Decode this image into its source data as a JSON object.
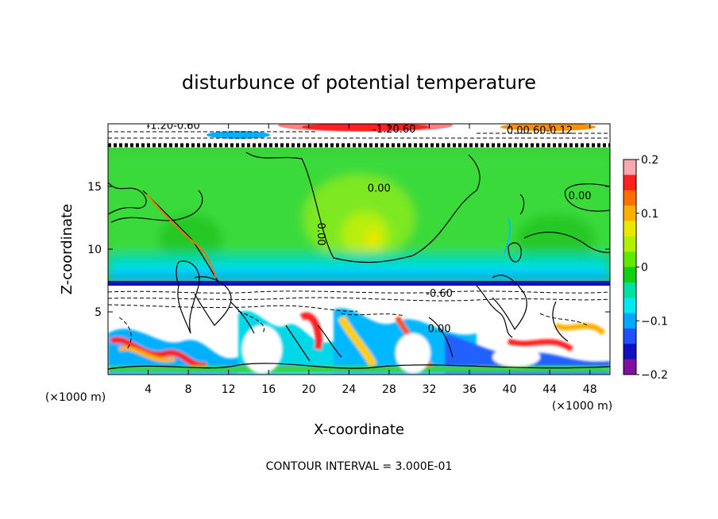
{
  "chart_data": {
    "type": "heatmap",
    "title": "disturbunce of potential temperature",
    "xlabel": "X-coordinate",
    "ylabel": "Z-coordinate",
    "x_unit": "(×1000 m)",
    "y_unit": "(×1000 m)",
    "xlim": [
      0,
      50
    ],
    "ylim": [
      0,
      20
    ],
    "x_ticks": [
      4,
      8,
      12,
      16,
      20,
      24,
      28,
      32,
      36,
      40,
      44,
      48
    ],
    "y_ticks": [
      5,
      10,
      15
    ],
    "colorbar": {
      "range": [
        -0.2,
        0.2
      ],
      "tick_values": [
        0.2,
        0.1,
        0,
        -0.1,
        -0.2
      ],
      "tick_labels": [
        "0.2",
        "0.1",
        "0",
        "−0.1",
        "−0.2"
      ],
      "colors": [
        "#f8a8b0",
        "#ff2020",
        "#ff7000",
        "#ffb000",
        "#e8e800",
        "#b0f000",
        "#60e800",
        "#10d010",
        "#00e0a0",
        "#00e8f0",
        "#00a8ff",
        "#2050ff",
        "#1010c0",
        "#8010a0"
      ]
    },
    "contour_labels": [
      {
        "text": "0.00",
        "x": 27.0,
        "y": 14.6
      },
      {
        "text": "0.00",
        "x": 47.0,
        "y": 14.0
      },
      {
        "text": "0.00",
        "x": 20.9,
        "y": 11.2,
        "rotate": 90
      },
      {
        "text": "0.00",
        "x": 33.0,
        "y": 3.4
      },
      {
        "text": "-0.60",
        "x": 33.0,
        "y": 6.2
      },
      {
        "text": "-1.20-0.60",
        "x": 6.5,
        "y": 19.6
      },
      {
        "text": "-1.20.60",
        "x": 28.5,
        "y": 19.3
      },
      {
        "text": "0.00.60-0.12",
        "x": 43.0,
        "y": 19.2
      }
    ],
    "contour_interval_text": "CONTOUR INTERVAL = 3.000E-01"
  }
}
